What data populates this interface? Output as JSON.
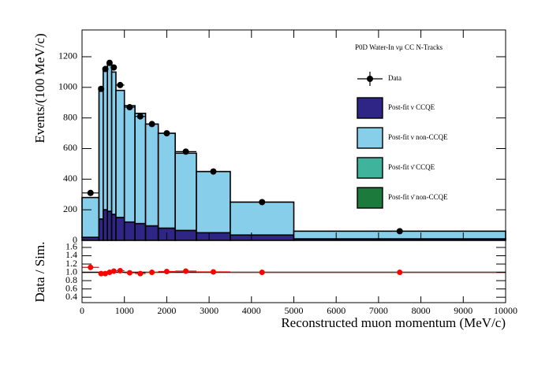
{
  "chart_data": {
    "type": "stacked-histogram",
    "header": "P0D Water-In  νμ CC N-Tracks",
    "ylabel": "Events/(100 MeV/c)",
    "ratio_ylabel": "Data / Sim.",
    "xlabel": "Reconstructed muon momentum (MeV/c)",
    "bins": [
      0,
      400,
      500,
      600,
      700,
      800,
      1000,
      1250,
      1500,
      1800,
      2200,
      2700,
      3500,
      5000,
      10000
    ],
    "series": [
      {
        "name": "Post-fit  ν CCQE",
        "color": "#2e2585",
        "values": [
          20,
          140,
          200,
          190,
          170,
          150,
          120,
          110,
          95,
          80,
          65,
          50,
          35,
          10
        ]
      },
      {
        "name": "Post-fit  ν non-CCQE",
        "color": "#87ceeb",
        "values": [
          260,
          860,
          910,
          960,
          930,
          830,
          760,
          720,
          665,
          620,
          505,
          400,
          215,
          50
        ]
      },
      {
        "name": "Post-fit  ν̄ CCQE",
        "color": "#3fb39c",
        "values": [
          0,
          0,
          0,
          0,
          0,
          0,
          0,
          0,
          0,
          0,
          0,
          0,
          0,
          0
        ]
      },
      {
        "name": "Post-fit  ν̄ non-CCQE",
        "color": "#1b7a3c",
        "values": [
          0,
          0,
          0,
          0,
          0,
          0,
          0,
          0,
          0,
          0,
          0,
          0,
          0,
          0
        ]
      }
    ],
    "data": {
      "name": "Data",
      "color": "#000000",
      "x": [
        200,
        450,
        550,
        650,
        750,
        900,
        1125,
        1375,
        1650,
        2000,
        2450,
        3100,
        4250,
        7500
      ],
      "values": [
        310,
        990,
        1120,
        1160,
        1130,
        1015,
        870,
        810,
        760,
        700,
        580,
        450,
        250,
        60
      ]
    },
    "ratio": {
      "color": "#ff0000",
      "values": [
        1.12,
        0.97,
        0.97,
        1.0,
        1.03,
        1.04,
        0.99,
        0.97,
        1.0,
        1.02,
        1.03,
        1.01,
        1.0,
        1.0
      ]
    },
    "xlim": [
      0,
      10000
    ],
    "xticks": [
      0,
      1000,
      2000,
      3000,
      4000,
      5000,
      6000,
      7000,
      8000,
      9000,
      10000
    ],
    "ylim": [
      0,
      1375
    ],
    "yticks": [
      0,
      200,
      400,
      600,
      800,
      1000,
      1200
    ],
    "ratio_ylim": [
      0.27,
      1.77
    ],
    "ratio_yticks": [
      0.4,
      0.6,
      0.8,
      {
        "value": 1,
        "label": "1.0"
      },
      1.2,
      1.4,
      1.6
    ]
  }
}
